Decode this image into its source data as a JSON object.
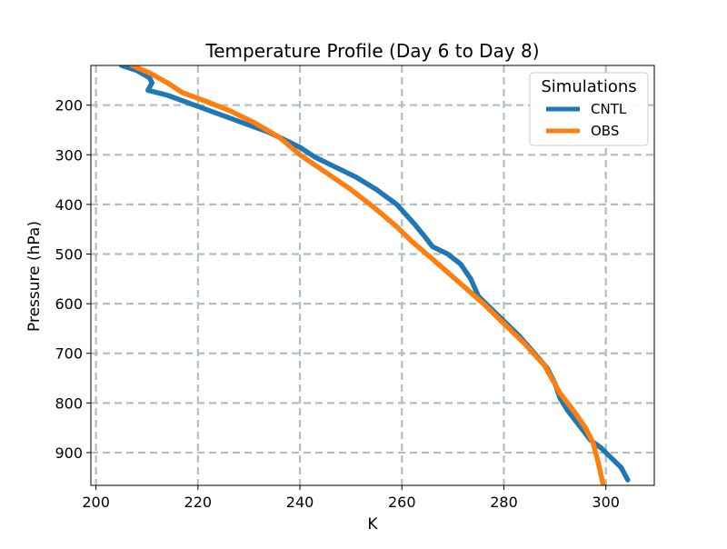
{
  "chart_data": {
    "type": "line",
    "title": "Temperature Profile (Day 6 to Day 8)",
    "xlabel": "K",
    "ylabel": "Pressure (hPa)",
    "xlim": [
      199,
      309.5
    ],
    "ylim": [
      966,
      120
    ],
    "y_inverted": true,
    "grid": true,
    "x_ticks": [
      200,
      220,
      240,
      260,
      280,
      300
    ],
    "y_ticks": [
      200,
      300,
      400,
      500,
      600,
      700,
      800,
      900
    ],
    "legend": {
      "title": "Simulations",
      "position": "top-right"
    },
    "series": [
      {
        "name": "CNTL",
        "color": "#1f77b4",
        "points": [
          [
            205,
            120
          ],
          [
            208,
            130
          ],
          [
            210.5,
            145
          ],
          [
            211,
            155
          ],
          [
            210.2,
            170
          ],
          [
            214,
            180
          ],
          [
            218,
            195
          ],
          [
            222,
            210
          ],
          [
            226,
            225
          ],
          [
            230,
            240
          ],
          [
            234,
            255
          ],
          [
            237,
            270
          ],
          [
            240,
            285
          ],
          [
            243,
            305
          ],
          [
            247,
            325
          ],
          [
            251,
            345
          ],
          [
            255,
            370
          ],
          [
            259,
            400
          ],
          [
            262.5,
            440
          ],
          [
            264.5,
            465
          ],
          [
            266,
            485
          ],
          [
            269,
            500
          ],
          [
            271.5,
            520
          ],
          [
            273.5,
            550
          ],
          [
            275,
            585
          ],
          [
            277,
            605
          ],
          [
            280,
            635
          ],
          [
            283,
            665
          ],
          [
            286,
            700
          ],
          [
            288.5,
            730
          ],
          [
            290,
            760
          ],
          [
            291,
            790
          ],
          [
            292.5,
            815
          ],
          [
            294,
            835
          ],
          [
            295.5,
            855
          ],
          [
            297,
            875
          ],
          [
            299,
            890
          ],
          [
            301,
            910
          ],
          [
            303,
            930
          ],
          [
            304.3,
            955
          ]
        ]
      },
      {
        "name": "OBS",
        "color": "#ff7f0e",
        "points": [
          [
            207,
            120
          ],
          [
            210.5,
            135
          ],
          [
            214,
            155
          ],
          [
            217,
            175
          ],
          [
            221,
            190
          ],
          [
            226,
            210
          ],
          [
            231,
            235
          ],
          [
            236,
            265
          ],
          [
            240,
            300
          ],
          [
            245,
            335
          ],
          [
            250,
            370
          ],
          [
            255,
            410
          ],
          [
            259,
            445
          ],
          [
            262,
            475
          ],
          [
            266,
            510
          ],
          [
            271,
            555
          ],
          [
            276,
            600
          ],
          [
            280,
            640
          ],
          [
            284,
            680
          ],
          [
            288,
            725
          ],
          [
            291,
            780
          ],
          [
            294,
            820
          ],
          [
            296,
            850
          ],
          [
            297.5,
            880
          ],
          [
            298.5,
            920
          ],
          [
            299.5,
            966
          ]
        ]
      }
    ]
  }
}
